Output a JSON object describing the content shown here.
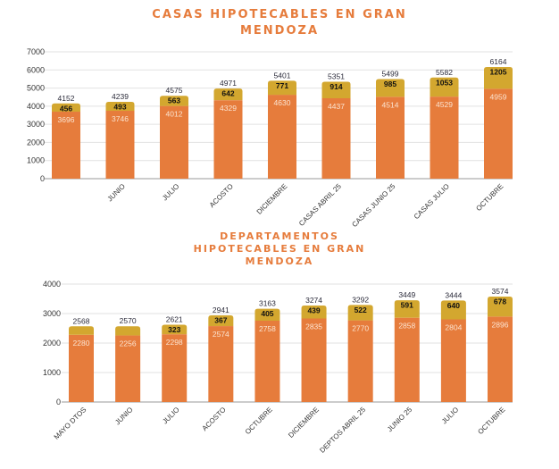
{
  "colors": {
    "base": "#e67c3c",
    "top": "#d3a72f",
    "grid": "#e2e2e2"
  },
  "chart_data": [
    {
      "type": "bar",
      "stacked": true,
      "title_lines": [
        "CASAS HIPOTECABLES EN GRAN",
        "MENDOZA"
      ],
      "categories": [
        "",
        "JUNIO",
        "JULIO",
        "ACOSTO",
        "DICIEMBRE",
        "CASAS ABRIL 25",
        "CASAS JUNIO 25",
        "CASAS JULIO",
        "OCTUBRE"
      ],
      "series": [
        {
          "name": "base",
          "values": [
            3696,
            3746,
            4012,
            4329,
            4630,
            4437,
            4514,
            4529,
            4959
          ],
          "labels": [
            "3696",
            "3746",
            "4012",
            "4329",
            "4630",
            "4437",
            "4514",
            "4529",
            "4959"
          ]
        },
        {
          "name": "top",
          "values": [
            456,
            493,
            563,
            642,
            771,
            914,
            985,
            1053,
            1205
          ],
          "labels": [
            "456",
            "493",
            "563",
            "642",
            "771",
            "914",
            "985",
            "1053",
            "1205"
          ]
        }
      ],
      "totals": [
        "4152",
        "4239",
        "4575",
        "4971",
        "5401",
        "5351",
        "5499",
        "5582",
        "6164"
      ],
      "ylim": [
        0,
        7000
      ],
      "yticks": [
        "0",
        "1000",
        "2000",
        "3000",
        "4000",
        "5000",
        "6000",
        "7000"
      ],
      "grid": true
    },
    {
      "type": "bar",
      "stacked": true,
      "title_lines": [
        "DEPARTAMENTOS",
        "HIPOTECABLES EN GRAN",
        "MENDOZA"
      ],
      "categories": [
        "MAYO DTOS",
        "JUNIO",
        "JULIO",
        "ACOSTO",
        "OCTUBRE",
        "DICIEMBRE",
        "DEPTOS ABRIL 25",
        "JUNIO 25",
        "JULIO",
        "OCTUBRE"
      ],
      "series": [
        {
          "name": "base",
          "values": [
            2280,
            2256,
            2298,
            2574,
            2758,
            2835,
            2770,
            2858,
            2804,
            2896
          ],
          "labels": [
            "2280",
            "2256",
            "2298",
            "2574",
            "2758",
            "2835",
            "2770",
            "2858",
            "2804",
            "2896"
          ]
        },
        {
          "name": "top",
          "values": [
            288,
            314,
            323,
            367,
            405,
            439,
            522,
            591,
            640,
            678
          ],
          "labels": [
            "",
            "",
            "323",
            "367",
            "405",
            "439",
            "522",
            "591",
            "640",
            "678"
          ]
        }
      ],
      "totals": [
        "2568",
        "2570",
        "2621",
        "2941",
        "3163",
        "3274",
        "3292",
        "3449",
        "3444",
        "3574"
      ],
      "ylim": [
        0,
        4000
      ],
      "yticks": [
        "0",
        "1000",
        "2000",
        "3000",
        "4000"
      ],
      "grid": true
    }
  ]
}
